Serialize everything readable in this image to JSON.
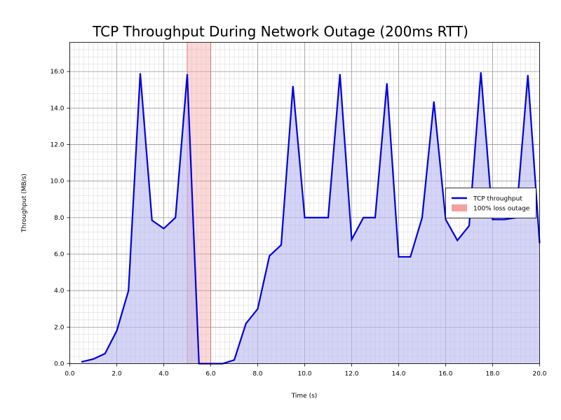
{
  "chart_data": {
    "type": "area",
    "title": "TCP Throughput During Network Outage (200ms RTT)",
    "xlabel": "Time (s)",
    "ylabel": "Throughput (MB/s)",
    "xlim": [
      0,
      20
    ],
    "ylim": [
      0,
      17.6
    ],
    "xticks": [
      "0.0",
      "2.0",
      "4.0",
      "6.0",
      "8.0",
      "10.0",
      "12.0",
      "14.0",
      "16.0",
      "18.0",
      "20.0"
    ],
    "yticks": [
      "0.0",
      "2.0",
      "4.0",
      "6.0",
      "8.0",
      "10.0",
      "12.0",
      "14.0",
      "16.0"
    ],
    "grid": true,
    "legend_position": "right",
    "series": [
      {
        "name": "TCP throughput",
        "color": "#0000dd",
        "fill_color": "#b8b8f0",
        "x": [
          0.5,
          1.0,
          1.5,
          2.0,
          2.5,
          3.0,
          3.5,
          4.0,
          4.5,
          5.0,
          5.5,
          6.0,
          6.5,
          7.0,
          7.5,
          8.0,
          8.5,
          9.0,
          9.5,
          10.0,
          10.5,
          11.0,
          11.5,
          12.0,
          12.5,
          13.0,
          13.5,
          14.0,
          14.5,
          15.0,
          15.5,
          16.0,
          16.5,
          17.0,
          17.5,
          18.0,
          18.5,
          19.0,
          19.5,
          20.0
        ],
        "y": [
          0.1,
          0.25,
          0.55,
          1.8,
          4.0,
          15.9,
          7.85,
          7.4,
          8.0,
          15.85,
          0.0,
          0.0,
          0.0,
          0.2,
          2.2,
          3.0,
          5.9,
          6.5,
          15.2,
          8.0,
          8.0,
          8.0,
          15.85,
          6.8,
          8.0,
          8.0,
          15.35,
          5.85,
          5.85,
          8.0,
          14.35,
          7.9,
          6.75,
          7.55,
          15.95,
          7.9,
          7.9,
          8.0,
          15.8,
          6.6
        ]
      }
    ],
    "shaded_regions": [
      {
        "name": "100% loss outage",
        "x_start": 5.0,
        "x_end": 6.0,
        "color": "#f4a0a0"
      }
    ]
  }
}
